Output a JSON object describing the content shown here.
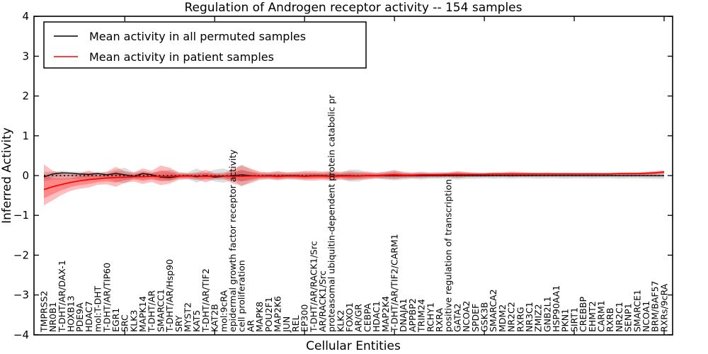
{
  "title": "Regulation of Androgen receptor activity -- 154 samples",
  "colors": {
    "permuted_line": "#000000",
    "patient_line": "#ff0000",
    "patient_band": "rgba(255,0,0,0.26)",
    "permuted_band": "rgba(0,0,0,0.13)",
    "background": "#ffffff",
    "axis": "#000000"
  },
  "chart_data": {
    "type": "line",
    "title": "Regulation of Androgen receptor activity -- 154 samples",
    "xlabel": "Cellular Entities",
    "ylabel": "Inferred Activity",
    "ylim": [
      -4,
      4
    ],
    "yticks": [
      4,
      3,
      2,
      1,
      0,
      -1,
      -2,
      -3,
      -4
    ],
    "ytick_labels": [
      "4",
      "3",
      "2",
      "1",
      "0",
      "−1",
      "−2",
      "−3",
      "−4"
    ],
    "grid": false,
    "zero_line": {
      "style": "dotted",
      "color": "#000000",
      "y": 0
    },
    "legend_position": "upper left",
    "legend": [
      {
        "label": "Mean activity in all permuted samples",
        "color": "#000000"
      },
      {
        "label": "Mean activity in patient samples",
        "color": "#ff0000"
      }
    ],
    "categories": [
      "TMPRSS2",
      "NR0B1",
      "T-DHT/AR/DAX-1",
      "HOXB13",
      "PDE9A",
      "HDAC7",
      "mol:T-DHT",
      "T-DHT/AR/TIP60",
      "EGR1",
      "SRC",
      "KLK3",
      "MAPK14",
      "T-DHT/AR",
      "SMARCC1",
      "T-DHT/AR/Hsp90",
      "SRY",
      "MYST2",
      "KAT5",
      "T-DHT/AR/TIF2",
      "KAT2B",
      "mol:9cRA",
      "epidermal growth factor receptor activity",
      "cell proliferation",
      "AR",
      "MAPK8",
      "POU2F1",
      "MAP2K6",
      "JUN",
      "REL",
      "EP300",
      "T-DHT/AR/RACK1/Src",
      "AR/RACK1/Src",
      "proteasomal ubiquitin-dependent protein catabolic pr",
      "KLK2",
      "FOXO1",
      "AR/GR",
      "CEBPA",
      "HDAC1",
      "MAP2K4",
      "T-DHT/AR/TIF2/CARM1",
      "DNAJA1",
      "APPBP2",
      "TRIM24",
      "RCHY1",
      "RXRA",
      "positive regulation of transcription",
      "GATA2",
      "NCOA2",
      "SPDEF",
      "GSK3B",
      "SMARCA2",
      "MDM2",
      "NR2C2",
      "RXRG",
      "NR3C1",
      "ZMIZ2",
      "GNB2L1",
      "HSP90AA1",
      "PKN1",
      "SIRT1",
      "CREBBP",
      "EHMT2",
      "CARM1",
      "RXRB",
      "NR2C1",
      "SENP1",
      "SMARCE1",
      "NCOA1",
      "BRM/BAF57",
      "RXRs/9cRA"
    ],
    "series": [
      {
        "name": "Mean activity in all permuted samples",
        "color": "#000000",
        "values": [
          -0.03,
          0.04,
          0.07,
          0.06,
          0.04,
          0.03,
          0.05,
          0.02,
          0.05,
          0.02,
          -0.02,
          0.05,
          0.02,
          -0.04,
          -0.05,
          -0.02,
          0.0,
          -0.03,
          0.0,
          -0.04,
          -0.02,
          0.0,
          0.02,
          0.0,
          -0.01,
          0.0,
          -0.01,
          0.0,
          0.0,
          -0.01,
          0.0,
          0.0,
          -0.01,
          0.0,
          0.0,
          -0.01,
          0.0,
          0.0,
          0.0,
          0.0,
          0.0,
          0.0,
          0.0,
          0.0,
          0.0,
          0.0,
          0.0,
          0.0,
          0.0,
          0.0,
          0.0,
          0.0,
          0.0,
          0.0,
          0.0,
          0.0,
          0.0,
          0.0,
          0.0,
          0.0,
          0.0,
          0.0,
          0.0,
          0.0,
          0.0,
          0.0,
          0.0,
          0.0,
          0.0,
          0.0
        ],
        "band_upper": [
          0.1,
          0.1,
          0.12,
          0.1,
          0.1,
          0.08,
          0.1,
          0.08,
          0.15,
          0.2,
          0.08,
          0.12,
          0.08,
          0.1,
          0.15,
          0.08,
          0.08,
          0.18,
          0.08,
          0.15,
          0.18,
          0.1,
          0.28,
          0.15,
          0.08,
          0.08,
          0.1,
          0.08,
          0.08,
          0.1,
          0.08,
          0.08,
          0.1,
          0.08,
          0.15,
          0.15,
          0.08,
          0.08,
          0.1,
          0.12,
          0.1,
          0.08,
          0.1,
          0.08,
          0.08,
          0.08,
          0.1,
          0.08,
          0.08,
          0.07,
          0.08,
          0.07,
          0.08,
          0.07,
          0.07,
          0.08,
          0.07,
          0.07,
          0.08,
          0.07,
          0.07,
          0.08,
          0.07,
          0.07,
          0.08,
          0.07,
          0.07,
          0.08,
          0.08,
          0.08
        ],
        "band_lower": [
          -0.15,
          -0.1,
          -0.1,
          -0.08,
          -0.1,
          -0.08,
          -0.08,
          -0.08,
          -0.15,
          -0.2,
          -0.08,
          -0.1,
          -0.08,
          -0.12,
          -0.15,
          -0.08,
          -0.08,
          -0.18,
          -0.08,
          -0.15,
          -0.18,
          -0.1,
          -0.28,
          -0.15,
          -0.08,
          -0.08,
          -0.1,
          -0.08,
          -0.08,
          -0.1,
          -0.08,
          -0.08,
          -0.1,
          -0.08,
          -0.15,
          -0.15,
          -0.08,
          -0.08,
          -0.1,
          -0.12,
          -0.1,
          -0.08,
          -0.1,
          -0.08,
          -0.08,
          -0.08,
          -0.1,
          -0.08,
          -0.08,
          -0.07,
          -0.08,
          -0.07,
          -0.08,
          -0.07,
          -0.07,
          -0.08,
          -0.07,
          -0.07,
          -0.08,
          -0.07,
          -0.07,
          -0.08,
          -0.07,
          -0.07,
          -0.08,
          -0.07,
          -0.07,
          -0.08,
          -0.08,
          -0.08
        ]
      },
      {
        "name": "Mean activity in patient samples",
        "color": "#ff0000",
        "values": [
          -0.35,
          -0.28,
          -0.22,
          -0.17,
          -0.13,
          -0.1,
          -0.08,
          -0.06,
          -0.05,
          -0.04,
          -0.03,
          -0.03,
          -0.02,
          -0.02,
          -0.02,
          -0.01,
          -0.01,
          -0.01,
          -0.02,
          -0.01,
          -0.01,
          -0.02,
          -0.02,
          -0.01,
          -0.01,
          -0.01,
          -0.02,
          -0.01,
          -0.01,
          -0.02,
          -0.01,
          -0.01,
          -0.02,
          -0.01,
          -0.01,
          -0.01,
          0.0,
          0.0,
          0.01,
          0.02,
          0.01,
          0.01,
          0.02,
          0.02,
          0.02,
          0.03,
          0.03,
          0.03,
          0.03,
          0.03,
          0.04,
          0.04,
          0.04,
          0.04,
          0.04,
          0.04,
          0.04,
          0.04,
          0.04,
          0.04,
          0.04,
          0.04,
          0.04,
          0.04,
          0.05,
          0.05,
          0.05,
          0.06,
          0.07,
          0.09
        ],
        "band_upper": [
          0.28,
          0.12,
          0.05,
          0.03,
          0.06,
          0.13,
          0.05,
          0.1,
          0.22,
          0.1,
          0.08,
          0.18,
          0.12,
          0.25,
          0.2,
          0.08,
          0.06,
          0.07,
          0.15,
          0.06,
          0.05,
          0.18,
          0.25,
          0.18,
          0.1,
          0.08,
          0.11,
          0.08,
          0.09,
          0.11,
          0.12,
          0.1,
          0.12,
          0.09,
          0.11,
          0.09,
          0.1,
          0.07,
          0.09,
          0.14,
          0.08,
          0.07,
          0.08,
          0.07,
          0.08,
          0.08,
          0.11,
          0.09,
          0.07,
          0.07,
          0.08,
          0.08,
          0.1,
          0.09,
          0.08,
          0.07,
          0.08,
          0.07,
          0.07,
          0.07,
          0.07,
          0.07,
          0.07,
          0.07,
          0.07,
          0.08,
          0.08,
          0.09,
          0.11,
          0.13
        ],
        "band_lower": [
          -0.75,
          -0.62,
          -0.48,
          -0.38,
          -0.33,
          -0.3,
          -0.23,
          -0.22,
          -0.28,
          -0.18,
          -0.15,
          -0.21,
          -0.16,
          -0.24,
          -0.2,
          -0.11,
          -0.09,
          -0.1,
          -0.17,
          -0.09,
          -0.08,
          -0.2,
          -0.25,
          -0.19,
          -0.11,
          -0.09,
          -0.12,
          -0.09,
          -0.1,
          -0.12,
          -0.13,
          -0.11,
          -0.13,
          -0.1,
          -0.12,
          -0.1,
          -0.1,
          -0.07,
          -0.08,
          -0.09,
          -0.07,
          -0.06,
          -0.06,
          -0.05,
          -0.05,
          -0.04,
          -0.06,
          -0.04,
          -0.03,
          -0.03,
          -0.02,
          -0.02,
          -0.03,
          -0.02,
          -0.02,
          -0.01,
          -0.01,
          -0.01,
          -0.01,
          -0.01,
          -0.01,
          0.0,
          0.0,
          0.0,
          0.0,
          0.0,
          0.0,
          0.01,
          0.02,
          0.04
        ]
      }
    ]
  }
}
